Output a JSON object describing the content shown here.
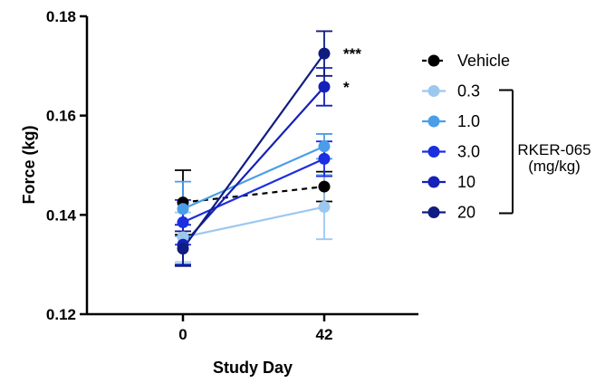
{
  "chart_data": {
    "type": "line",
    "xlabel": "Study Day",
    "ylabel": "Force (kg)",
    "x_categories": [
      "0",
      "42"
    ],
    "ylim": [
      0.12,
      0.18
    ],
    "y_ticks": [
      0.12,
      0.14,
      0.16,
      0.18
    ],
    "y_tick_labels": [
      "0.12",
      "0.14",
      "0.16",
      "0.18"
    ],
    "series": [
      {
        "name": "Vehicle",
        "color": "#000000",
        "dashed": true,
        "values": [
          0.1425,
          0.1457
        ],
        "err": [
          0.0065,
          0.003
        ],
        "sig": ""
      },
      {
        "name": "0.3",
        "color": "#9cc8f0",
        "dashed": false,
        "values": [
          0.1355,
          0.1416
        ],
        "err": [
          0.005,
          0.0065
        ],
        "sig": ""
      },
      {
        "name": "1.0",
        "color": "#4a9ee8",
        "dashed": false,
        "values": [
          0.1412,
          0.1538
        ],
        "err": [
          0.0055,
          0.0025
        ],
        "sig": ""
      },
      {
        "name": "3.0",
        "color": "#1b2ee0",
        "dashed": false,
        "values": [
          0.1385,
          0.1513
        ],
        "err": [
          0.0045,
          0.0035
        ],
        "sig": ""
      },
      {
        "name": "10",
        "color": "#1520b8",
        "dashed": false,
        "values": [
          0.134,
          0.1658
        ],
        "err": [
          0.004,
          0.0038
        ],
        "sig": "*"
      },
      {
        "name": "20",
        "color": "#101c80",
        "dashed": false,
        "values": [
          0.1332,
          0.1725
        ],
        "err": [
          0.0035,
          0.0045
        ],
        "sig": "***"
      }
    ],
    "legend_group_label_1": "RKER-065",
    "legend_group_label_2": "(mg/kg)"
  }
}
